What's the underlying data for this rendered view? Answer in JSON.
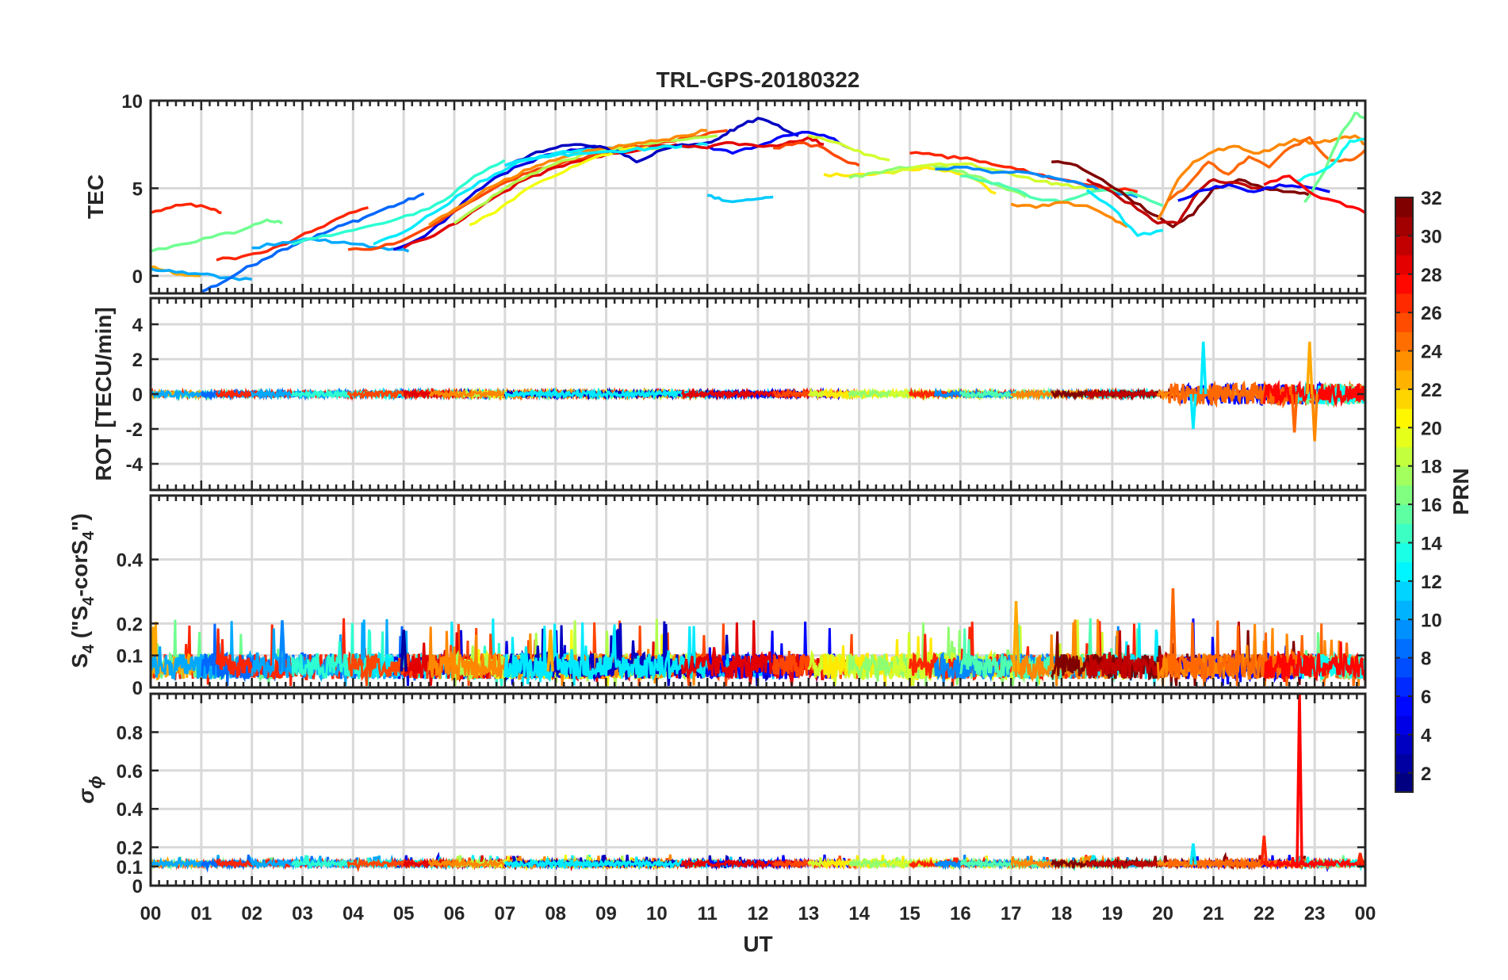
{
  "title": "TRL-GPS-20180322",
  "x_axis": {
    "label": "UT",
    "range_hours": [
      0,
      24
    ],
    "tick_labels": [
      "00",
      "01",
      "02",
      "03",
      "04",
      "05",
      "06",
      "07",
      "08",
      "09",
      "10",
      "11",
      "12",
      "13",
      "14",
      "15",
      "16",
      "17",
      "18",
      "19",
      "20",
      "21",
      "22",
      "23",
      "00"
    ]
  },
  "colorbar": {
    "label": "PRN",
    "range": [
      1,
      32
    ],
    "tick_labels": [
      "2",
      "4",
      "6",
      "8",
      "10",
      "12",
      "14",
      "16",
      "18",
      "20",
      "22",
      "24",
      "26",
      "28",
      "30",
      "32"
    ],
    "colormap": "jet"
  },
  "panels": [
    {
      "id": "tec",
      "ylabel": "TEC",
      "ylim": [
        -1,
        10
      ],
      "yticks": [
        "0",
        "5",
        "10"
      ],
      "grid": true
    },
    {
      "id": "rot",
      "ylabel": "ROT [TECU/min]",
      "ylim": [
        -5.5,
        5.5
      ],
      "yticks": [
        "-4",
        "-2",
        "0",
        "2",
        "4"
      ],
      "grid": true
    },
    {
      "id": "s4",
      "ylabel": "S4 (\"S4-corS4\")",
      "ylabel_parts": {
        "p1": "S",
        "p1_sub": "4",
        "p2": " (\"S",
        "p2_sub": "4",
        "p3": "-corS",
        "p3_sub": "4",
        "p4": "\")"
      },
      "ylim": [
        0,
        0.6
      ],
      "yticks": [
        "0",
        "0.1",
        "0.2",
        "0.4"
      ],
      "grid": true
    },
    {
      "id": "sigma",
      "ylabel": "σ ϕ",
      "ylabel_parts": {
        "sym": "σ",
        "sub": "ϕ"
      },
      "ylim": [
        0,
        1
      ],
      "yticks": [
        "0",
        "0.1",
        "0.2",
        "0.4",
        "0.6",
        "0.8"
      ],
      "grid": true
    }
  ],
  "chart_data": {
    "type": "line",
    "title": "TRL-GPS-20180322",
    "xlabel": "UT",
    "xlim": [
      0,
      24
    ],
    "colorbar_label": "PRN",
    "tec_series": [
      {
        "prn": 27,
        "x": [
          0,
          0.4,
          0.8,
          1.2,
          1.4
        ],
        "y": [
          3.6,
          3.9,
          4.1,
          3.8,
          3.6
        ]
      },
      {
        "prn": 16,
        "x": [
          0,
          0.6,
          1.2,
          1.8,
          2.3,
          2.6
        ],
        "y": [
          1.4,
          1.8,
          2.2,
          2.6,
          3.2,
          3.0
        ]
      },
      {
        "prn": 23,
        "x": [
          0,
          0.3,
          0.6,
          0.9,
          1.0
        ],
        "y": [
          0.5,
          0.3,
          0.1,
          0.0,
          0.0
        ]
      },
      {
        "prn": 10,
        "x": [
          0,
          0.5,
          1.0,
          1.5,
          2.0
        ],
        "y": [
          0.4,
          0.2,
          0.1,
          -0.1,
          -0.2
        ]
      },
      {
        "prn": 8,
        "x": [
          1.0,
          1.4,
          1.8,
          2.2,
          2.6,
          3.0,
          3.4,
          3.8,
          4.2,
          4.6,
          5.0,
          5.4
        ],
        "y": [
          -0.9,
          -0.4,
          0.3,
          0.9,
          1.5,
          2.0,
          2.4,
          2.9,
          3.3,
          3.8,
          4.2,
          4.7
        ]
      },
      {
        "prn": 27,
        "x": [
          1.3,
          1.8,
          2.3,
          2.8,
          3.3,
          3.8,
          4.3
        ],
        "y": [
          0.9,
          1.1,
          1.4,
          2.0,
          2.7,
          3.4,
          3.9
        ]
      },
      {
        "prn": 10,
        "x": [
          2.0,
          2.6,
          3.2,
          3.7,
          4.2,
          4.7,
          5.1
        ],
        "y": [
          1.6,
          1.9,
          2.1,
          1.9,
          1.8,
          1.5,
          1.4
        ]
      },
      {
        "prn": 14,
        "x": [
          2.8,
          3.4,
          4.0,
          4.6,
          5.2,
          5.8,
          6.4,
          7.0
        ],
        "y": [
          1.8,
          2.3,
          2.6,
          3.0,
          3.5,
          4.3,
          5.7,
          6.6
        ]
      },
      {
        "prn": 4,
        "x": [
          4.8,
          5.3,
          5.8,
          6.3,
          6.8,
          7.3,
          7.8,
          8.3,
          8.8
        ],
        "y": [
          1.5,
          2.1,
          3.1,
          4.5,
          5.6,
          6.3,
          6.9,
          7.2,
          7.4
        ]
      },
      {
        "prn": 12,
        "x": [
          4.4,
          5.0,
          5.6,
          6.2,
          6.8,
          7.4,
          8.0,
          8.6,
          9.2
        ],
        "y": [
          1.8,
          2.5,
          3.6,
          4.8,
          5.8,
          6.6,
          7.0,
          7.2,
          7.3
        ]
      },
      {
        "prn": 26,
        "x": [
          3.9,
          4.5,
          5.1,
          5.7,
          6.3,
          6.9,
          7.5,
          8.1,
          8.7,
          9.3,
          10.0,
          10.7,
          11.4
        ],
        "y": [
          1.5,
          1.6,
          2.2,
          3.1,
          4.2,
          5.2,
          5.9,
          6.4,
          6.9,
          7.3,
          7.6,
          7.9,
          8.3
        ]
      },
      {
        "prn": 29,
        "x": [
          5.0,
          5.6,
          6.2,
          6.8,
          7.4,
          8.0,
          8.6,
          9.2,
          9.8,
          10.4
        ],
        "y": [
          1.6,
          2.3,
          3.3,
          4.5,
          5.5,
          6.2,
          6.6,
          7.0,
          7.3,
          7.5
        ]
      },
      {
        "prn": 20,
        "x": [
          6.3,
          6.8,
          7.3,
          7.8,
          8.3,
          8.8,
          9.3,
          9.8,
          10.3
        ],
        "y": [
          2.9,
          3.6,
          4.7,
          5.5,
          6.2,
          6.8,
          7.2,
          7.3,
          7.4
        ]
      },
      {
        "prn": 18,
        "x": [
          6.0,
          6.5,
          7.0,
          7.5,
          8.0,
          8.5,
          9.0,
          9.5,
          10.0,
          10.6,
          11.2
        ],
        "y": [
          3.0,
          4.0,
          5.0,
          5.8,
          6.4,
          6.9,
          7.2,
          7.5,
          7.6,
          7.8,
          8.0
        ]
      },
      {
        "prn": 24,
        "x": [
          5.5,
          6.0,
          6.5,
          7.0,
          7.5,
          8.0,
          8.5,
          9.0,
          9.5,
          10.0,
          10.5,
          11.0
        ],
        "y": [
          2.9,
          3.8,
          4.7,
          5.5,
          6.1,
          6.6,
          7.0,
          7.3,
          7.5,
          7.7,
          8.0,
          8.3
        ]
      },
      {
        "prn": 3,
        "x": [
          7.0,
          7.5,
          8.0,
          8.5,
          9.0,
          9.3,
          9.6,
          10.0,
          10.5,
          11.0,
          11.3,
          11.6,
          12.0,
          12.4,
          12.8
        ],
        "y": [
          6.3,
          6.9,
          7.3,
          7.5,
          7.3,
          7.0,
          6.5,
          7.1,
          7.5,
          7.6,
          8.0,
          8.5,
          9.0,
          8.6,
          8.0
        ]
      },
      {
        "prn": 12,
        "x": [
          7.0,
          7.5,
          8.0,
          8.5,
          9.0,
          9.5,
          10.0,
          10.5,
          11.0
        ],
        "y": [
          6.3,
          6.7,
          6.9,
          7.0,
          7.1,
          7.2,
          7.3,
          7.4,
          7.5
        ]
      },
      {
        "prn": 11,
        "x": [
          11.0,
          11.3,
          11.7,
          12.0,
          12.3
        ],
        "y": [
          4.6,
          4.3,
          4.3,
          4.4,
          4.5
        ]
      },
      {
        "prn": 5,
        "x": [
          11.0,
          11.5,
          12.0,
          12.5,
          13.0,
          13.4,
          13.8
        ],
        "y": [
          7.4,
          7.0,
          7.4,
          8.0,
          8.2,
          7.9,
          7.3
        ]
      },
      {
        "prn": 29,
        "x": [
          10.5,
          11.0,
          11.5,
          12.0,
          12.5,
          13.0,
          13.3
        ],
        "y": [
          7.4,
          7.3,
          7.6,
          7.4,
          7.5,
          7.9,
          7.5
        ]
      },
      {
        "prn": 26,
        "x": [
          12.3,
          12.8,
          13.3,
          13.7,
          14.0
        ],
        "y": [
          7.3,
          7.6,
          7.3,
          6.6,
          6.3
        ]
      },
      {
        "prn": 19,
        "x": [
          13.0,
          13.4,
          13.8,
          14.2,
          14.6
        ],
        "y": [
          8.0,
          7.7,
          7.3,
          6.9,
          6.6
        ]
      },
      {
        "prn": 21,
        "x": [
          13.3,
          13.8,
          14.3,
          14.8,
          15.3,
          15.8,
          16.3,
          16.7
        ],
        "y": [
          5.8,
          5.7,
          5.8,
          6.0,
          6.2,
          6.0,
          5.5,
          4.7
        ]
      },
      {
        "prn": 17,
        "x": [
          13.8,
          14.3,
          14.8,
          15.3,
          15.8,
          16.3,
          16.8,
          17.3
        ],
        "y": [
          5.6,
          5.9,
          6.2,
          6.3,
          6.1,
          5.7,
          5.1,
          4.5
        ]
      },
      {
        "prn": 19,
        "x": [
          14.6,
          15.1,
          15.6,
          16.1,
          16.6,
          17.1,
          17.6,
          18.0,
          18.5,
          19.0,
          19.3
        ],
        "y": [
          5.9,
          6.2,
          6.4,
          6.4,
          6.1,
          5.7,
          5.4,
          5.2,
          5.0,
          4.9,
          4.7
        ]
      },
      {
        "prn": 27,
        "x": [
          15.0,
          15.5,
          16.0,
          16.5,
          17.0,
          17.5,
          18.0,
          18.5,
          19.0,
          19.5
        ],
        "y": [
          7.0,
          6.9,
          6.7,
          6.5,
          6.2,
          5.8,
          5.5,
          5.2,
          5.0,
          4.8
        ]
      },
      {
        "prn": 9,
        "x": [
          15.5,
          16.0,
          16.5,
          17.0,
          17.5,
          18.0,
          18.5,
          19.0,
          19.5
        ],
        "y": [
          6.1,
          6.2,
          6.0,
          5.9,
          5.8,
          5.5,
          5.1,
          4.8,
          4.5
        ]
      },
      {
        "prn": 15,
        "x": [
          16.0,
          16.5,
          17.0,
          17.5,
          18.0,
          18.5,
          19.0,
          19.5,
          20.0
        ],
        "y": [
          5.7,
          5.4,
          5.0,
          4.4,
          4.2,
          4.7,
          4.9,
          4.6,
          4.0
        ]
      },
      {
        "prn": 24,
        "x": [
          17.0,
          17.5,
          18.0,
          18.5,
          19.0,
          19.3
        ],
        "y": [
          4.1,
          3.9,
          4.2,
          4.0,
          3.3,
          2.8
        ]
      },
      {
        "prn": 12,
        "x": [
          18.5,
          19.0,
          19.5,
          20.0
        ],
        "y": [
          4.9,
          3.9,
          2.3,
          2.6
        ]
      },
      {
        "prn": 32,
        "x": [
          17.8,
          18.3,
          18.8,
          19.3,
          19.8,
          20.2,
          20.6,
          21.0,
          21.5,
          22.0,
          22.5,
          22.9
        ],
        "y": [
          6.5,
          6.3,
          5.5,
          4.5,
          3.5,
          2.8,
          3.5,
          5.0,
          5.5,
          5.0,
          4.8,
          4.6
        ]
      },
      {
        "prn": 30,
        "x": [
          18.5,
          19.0,
          19.5,
          19.9,
          20.3,
          20.7,
          21.0,
          21.5,
          22.0
        ],
        "y": [
          5.5,
          4.8,
          3.8,
          3.0,
          3.0,
          4.8,
          5.5,
          5.3,
          4.9
        ]
      },
      {
        "prn": 5,
        "x": [
          20.3,
          20.8,
          21.3,
          21.8,
          22.3,
          22.8,
          23.3
        ],
        "y": [
          4.3,
          4.9,
          5.2,
          4.8,
          5.2,
          5.1,
          4.8
        ]
      },
      {
        "prn": 24,
        "x": [
          19.9,
          20.3,
          20.6,
          21.0,
          21.4,
          21.8,
          22.2,
          22.6,
          23.0,
          23.4,
          23.8,
          24.0
        ],
        "y": [
          3.2,
          5.5,
          6.5,
          7.1,
          7.4,
          7.0,
          7.3,
          7.8,
          7.6,
          7.8,
          8.0,
          7.5
        ]
      },
      {
        "prn": 25,
        "x": [
          20.1,
          20.5,
          20.9,
          21.3,
          21.7,
          22.1,
          22.5,
          22.9,
          23.3,
          23.7,
          24.0
        ],
        "y": [
          4.3,
          5.2,
          6.5,
          5.8,
          6.8,
          6.2,
          7.3,
          7.9,
          6.6,
          6.6,
          7.2
        ]
      },
      {
        "prn": 16,
        "x": [
          22.8,
          23.2,
          23.5,
          23.8,
          24.0
        ],
        "y": [
          4.2,
          6.0,
          8.0,
          9.3,
          9.0
        ]
      },
      {
        "prn": 13,
        "x": [
          22.6,
          23.0,
          23.4,
          23.7,
          24.0
        ],
        "y": [
          5.4,
          5.8,
          6.5,
          7.7,
          7.8
        ]
      },
      {
        "prn": 28,
        "x": [
          22.0,
          22.5,
          23.0,
          23.5,
          24.0
        ],
        "y": [
          5.2,
          5.7,
          4.6,
          4.2,
          3.6
        ]
      }
    ],
    "rot_panel": {
      "baseline": 0,
      "noise_amplitude": 0.15,
      "peaks": [
        {
          "x": 20.8,
          "y": 3.0,
          "prn": 12
        },
        {
          "x": 20.6,
          "y": -2.0,
          "prn": 12
        },
        {
          "x": 22.6,
          "y": -2.2,
          "prn": 25
        },
        {
          "x": 22.9,
          "y": 3.0,
          "prn": 23
        },
        {
          "x": 23.0,
          "y": -2.7,
          "prn": 24
        }
      ]
    },
    "s4_panel": {
      "typical_level": 0.05,
      "peaks": [
        {
          "x": 2.6,
          "y": 0.21,
          "prn": 9
        },
        {
          "x": 5.0,
          "y": 0.18,
          "prn": 2
        },
        {
          "x": 7.9,
          "y": 0.18,
          "prn": 23
        },
        {
          "x": 17.1,
          "y": 0.27,
          "prn": 23
        },
        {
          "x": 20.2,
          "y": 0.31,
          "prn": 25
        }
      ]
    },
    "sigma_panel": {
      "typical_level": 0.11,
      "peaks": [
        {
          "x": 20.6,
          "y": 0.22,
          "prn": 12
        },
        {
          "x": 22.0,
          "y": 0.26,
          "prn": 27
        },
        {
          "x": 22.7,
          "y": 1.0,
          "prn": 28
        },
        {
          "x": 23.9,
          "y": 0.17,
          "prn": 27
        }
      ]
    }
  }
}
